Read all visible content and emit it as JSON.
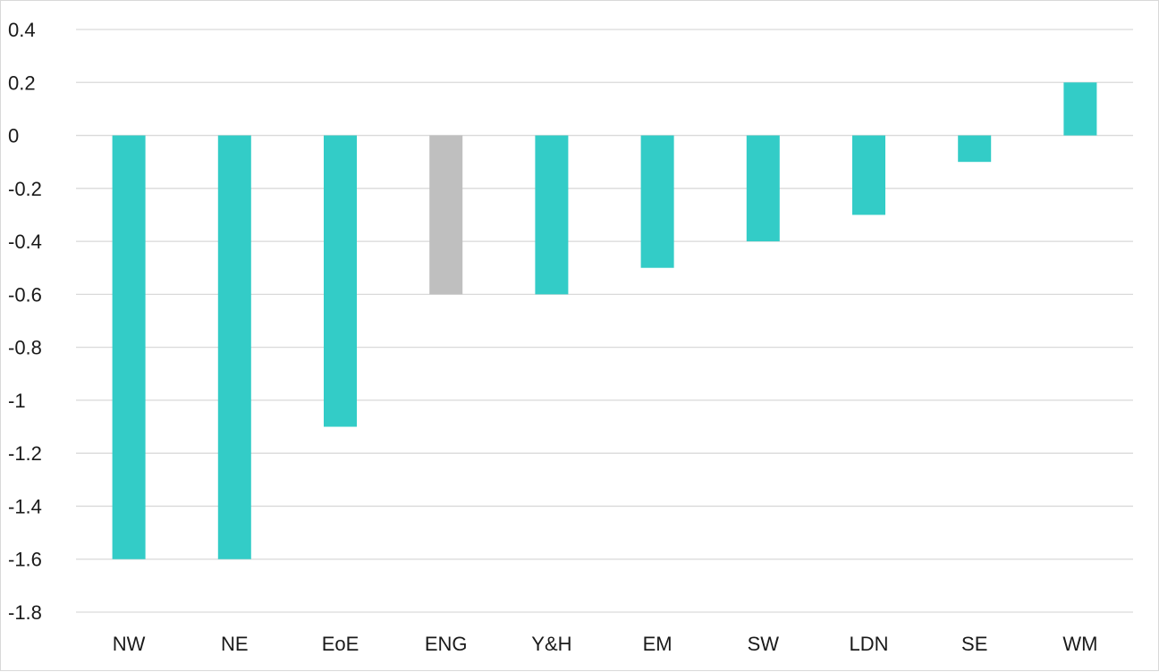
{
  "chart_data": {
    "type": "bar",
    "title": "",
    "xlabel": "",
    "ylabel": "",
    "categories": [
      "NW",
      "NE",
      "EoE",
      "ENG",
      "Y&H",
      "EM",
      "SW",
      "LDN",
      "SE",
      "WM"
    ],
    "values": [
      -1.6,
      -1.6,
      -1.1,
      -0.6,
      -0.6,
      -0.5,
      -0.4,
      -0.3,
      -0.1,
      0.2
    ],
    "ylim": [
      -1.8,
      0.4
    ],
    "yticks": [
      0.4,
      0.2,
      0,
      -0.2,
      -0.4,
      -0.6,
      -0.8,
      -1,
      -1.2,
      -1.4,
      -1.6,
      -1.8
    ],
    "grid": true,
    "legend": "none",
    "colors": {
      "bar": "#33CCC7",
      "highlight_bar": "#BFBFBF",
      "highlight_category": "ENG",
      "grid": "#D9D9D9",
      "text": "#1A1A1A"
    }
  }
}
